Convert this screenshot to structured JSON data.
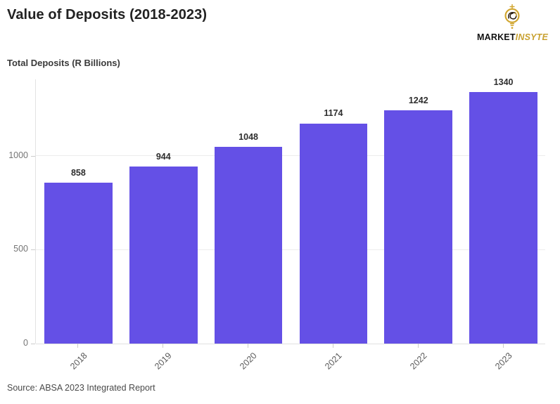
{
  "chart_data": {
    "type": "bar",
    "title": "Value of Deposits (2018-2023)",
    "subtitle": "Total Deposits (R Billions)",
    "categories": [
      "2018",
      "2019",
      "2020",
      "2021",
      "2022",
      "2023"
    ],
    "values": [
      858,
      944,
      1048,
      1174,
      1242,
      1340
    ],
    "yticks": [
      0,
      500,
      1000
    ],
    "ylim": [
      0,
      1408
    ],
    "xlabel": "",
    "ylabel": "Total Deposits (R Billions)",
    "grid": true,
    "legend": "none",
    "bar_color": "#6450e6",
    "value_labels": true,
    "x_tick_rotation": -45
  },
  "logo": {
    "brand_primary": "MARKET",
    "brand_secondary": "INSYTE",
    "icon": "lightbulb-icon",
    "gold_color": "#c9a232"
  },
  "footer": {
    "source": "Source: ABSA 2023 Integrated Report"
  }
}
